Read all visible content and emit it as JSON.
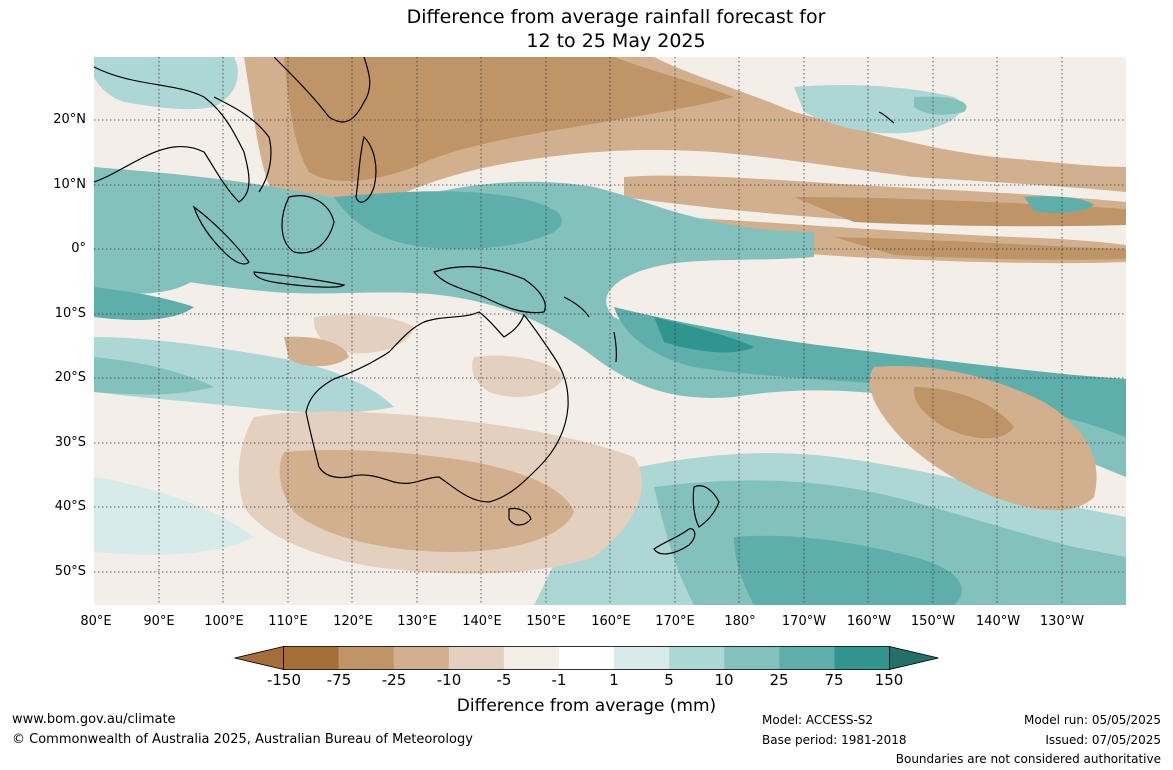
{
  "title": {
    "line1": "Difference from average rainfall forecast for",
    "line2": "12 to 25 May 2025"
  },
  "map": {
    "latitude_labels": [
      "20°N",
      "10°N",
      "0°",
      "10°S",
      "20°S",
      "30°S",
      "40°S",
      "50°S"
    ],
    "longitude_labels": [
      "80°E",
      "90°E",
      "100°E",
      "110°E",
      "120°E",
      "130°E",
      "140°E",
      "150°E",
      "160°E",
      "170°E",
      "180°",
      "170°W",
      "160°W",
      "150°W",
      "140°W",
      "130°W"
    ],
    "land_outlines": [
      "Asia",
      "Maritime Continent",
      "Australia",
      "New Zealand",
      "Pacific islands"
    ]
  },
  "legend": {
    "ticks": [
      "-150",
      "-75",
      "-25",
      "-10",
      "-5",
      "-1",
      "1",
      "5",
      "10",
      "25",
      "75",
      "150"
    ],
    "colors": [
      "#a56d38",
      "#bf9466",
      "#d2b08d",
      "#e4d0be",
      "#f3eee8",
      "#ffffff",
      "#d6ebea",
      "#acd7d5",
      "#83c1bd",
      "#5eaeac",
      "#30958f",
      "#236f69"
    ],
    "label": "Difference from average (mm)"
  },
  "footer": {
    "url": "www.bom.gov.au/climate",
    "copyright": "© Commonwealth of Australia 2025, Australian Bureau of Meteorology",
    "model": "Model: ACCESS-S2",
    "base_period": "Base period: 1981-2018",
    "model_run": "Model run: 05/05/2025",
    "issued": "Issued: 07/05/2025",
    "disclaimer": "Boundaries are not considered authoritative"
  }
}
